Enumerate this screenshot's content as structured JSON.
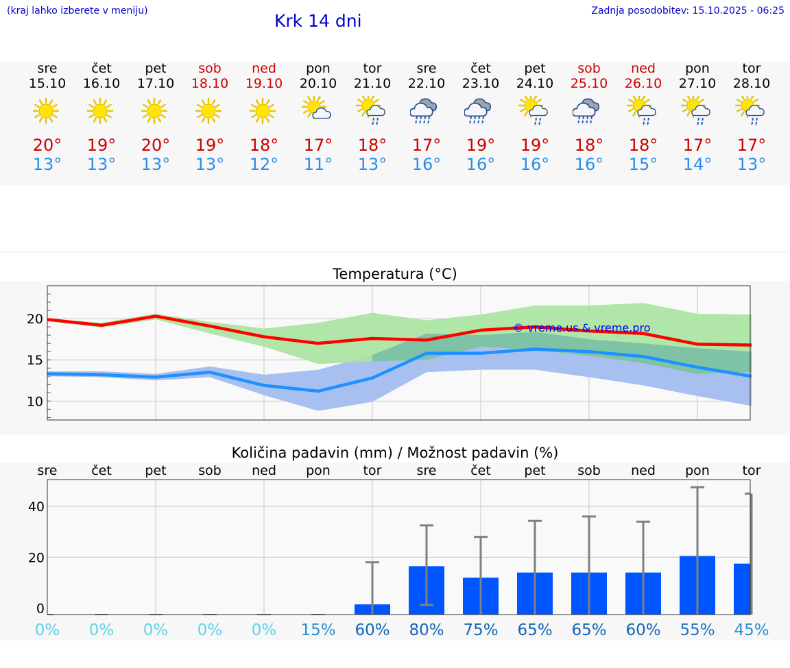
{
  "header": {
    "hint": "(kraj lahko izberete v meniju)",
    "title": "Krk 14 dni",
    "updated": "Zadnja posodobitev: 15.10.2025 - 06:25"
  },
  "days": [
    {
      "dow": "sre",
      "date": "15.10",
      "weekend": false,
      "icon": "sun-icon",
      "tmax": "20°",
      "tmin": "13°"
    },
    {
      "dow": "čet",
      "date": "16.10",
      "weekend": false,
      "icon": "sun-icon",
      "tmax": "19°",
      "tmin": "13°"
    },
    {
      "dow": "pet",
      "date": "17.10",
      "weekend": false,
      "icon": "sun-icon",
      "tmax": "20°",
      "tmin": "13°"
    },
    {
      "dow": "sob",
      "date": "18.10",
      "weekend": true,
      "icon": "sun-icon",
      "tmax": "19°",
      "tmin": "13°"
    },
    {
      "dow": "ned",
      "date": "19.10",
      "weekend": true,
      "icon": "sun-icon",
      "tmax": "18°",
      "tmin": "12°"
    },
    {
      "dow": "pon",
      "date": "20.10",
      "weekend": false,
      "icon": "sun-cloud-icon",
      "tmax": "17°",
      "tmin": "11°"
    },
    {
      "dow": "tor",
      "date": "21.10",
      "weekend": false,
      "icon": "sun-cloud-rain-icon",
      "tmax": "18°",
      "tmin": "13°"
    },
    {
      "dow": "sre",
      "date": "22.10",
      "weekend": false,
      "icon": "cloud-rain-icon",
      "tmax": "17°",
      "tmin": "16°"
    },
    {
      "dow": "čet",
      "date": "23.10",
      "weekend": false,
      "icon": "cloud-rain-icon",
      "tmax": "19°",
      "tmin": "16°"
    },
    {
      "dow": "pet",
      "date": "24.10",
      "weekend": false,
      "icon": "sun-cloud-rain-icon",
      "tmax": "19°",
      "tmin": "16°"
    },
    {
      "dow": "sob",
      "date": "25.10",
      "weekend": true,
      "icon": "cloud-rain-icon",
      "tmax": "18°",
      "tmin": "16°"
    },
    {
      "dow": "ned",
      "date": "26.10",
      "weekend": true,
      "icon": "sun-cloud-rain-icon",
      "tmax": "18°",
      "tmin": "15°"
    },
    {
      "dow": "pon",
      "date": "27.10",
      "weekend": false,
      "icon": "sun-cloud-rain-icon",
      "tmax": "17°",
      "tmin": "14°"
    },
    {
      "dow": "tor",
      "date": "28.10",
      "weekend": false,
      "icon": "sun-cloud-rain-icon",
      "tmax": "17°",
      "tmin": "13°"
    }
  ],
  "colors": {
    "max": "#ff0000",
    "min": "#1e90ff",
    "max_band": "#a8e3a0",
    "min_band": "#a8c0f0",
    "overlap": "#7ec3a6",
    "bar": "#0055ff",
    "error_bar": "#808080"
  },
  "chart_data": [
    {
      "type": "line",
      "title": "Temperatura (°C)",
      "watermark": "© vreme.us & vreme.pro",
      "ylim": [
        7.7,
        24.0
      ],
      "yticks": [
        10,
        15,
        20
      ],
      "grid": true,
      "x": [
        0,
        1,
        2,
        3,
        4,
        5,
        6,
        7,
        8,
        9,
        10,
        11,
        12,
        13
      ],
      "series": [
        {
          "values": [
            19.9,
            19.2,
            20.3,
            19.1,
            17.8,
            17.0,
            17.6,
            17.4,
            18.6,
            19.0,
            18.5,
            18.2,
            16.9,
            16.8
          ],
          "band_low": [
            19.7,
            18.9,
            19.9,
            18.2,
            16.6,
            14.5,
            14.8,
            15.0,
            16.6,
            16.2,
            15.5,
            14.6,
            13.3,
            13.5
          ],
          "band_high": [
            20.0,
            19.5,
            20.6,
            19.6,
            18.8,
            19.5,
            20.7,
            19.8,
            20.5,
            21.6,
            21.6,
            21.9,
            20.6,
            20.5
          ]
        },
        {
          "values": [
            13.3,
            13.2,
            12.9,
            13.5,
            11.9,
            11.2,
            12.8,
            15.8,
            15.8,
            16.3,
            16.0,
            15.4,
            14.1,
            13.0
          ],
          "band_low": [
            13.0,
            12.9,
            12.5,
            12.9,
            10.7,
            8.8,
            9.9,
            13.5,
            13.8,
            13.8,
            12.9,
            11.9,
            10.6,
            9.4
          ],
          "band_high": [
            13.6,
            13.6,
            13.3,
            14.2,
            13.2,
            13.8,
            15.6,
            18.2,
            18.0,
            18.4,
            17.5,
            17.0,
            16.4,
            16.0
          ]
        }
      ]
    },
    {
      "type": "bar",
      "title": "Količina padavin (mm) / Možnost padavin (%)",
      "categories": [
        "sre",
        "čet",
        "pet",
        "sob",
        "ned",
        "pon",
        "tor",
        "sre",
        "čet",
        "pet",
        "sob",
        "ned",
        "pon",
        "tor"
      ],
      "ylim": [
        -2.5,
        50.5
      ],
      "yticks": [
        0,
        20,
        40
      ],
      "values": [
        0,
        0,
        0,
        0,
        0,
        0,
        1.5,
        16.5,
        12,
        14,
        14,
        14,
        20.5,
        17.5
      ],
      "err_high": [
        0,
        0,
        0,
        0,
        0,
        0,
        18,
        32.5,
        28,
        34.3,
        36,
        34,
        47.5,
        45
      ],
      "err_low": [
        0,
        0,
        0,
        0,
        0,
        0,
        0,
        1.3,
        0,
        0,
        0,
        0,
        0,
        0
      ],
      "probability": [
        "0%",
        "0%",
        "0%",
        "0%",
        "0%",
        "15%",
        "60%",
        "80%",
        "75%",
        "65%",
        "65%",
        "60%",
        "55%",
        "45%"
      ],
      "probability_colors": [
        "#5fd3e8",
        "#5fd3e8",
        "#5fd3e8",
        "#5fd3e8",
        "#5fd3e8",
        "#2a8fd0",
        "#1565b8",
        "#1565b8",
        "#1565b8",
        "#1565b8",
        "#1565b8",
        "#1565b8",
        "#1e75c4",
        "#2a8fd0"
      ]
    }
  ]
}
